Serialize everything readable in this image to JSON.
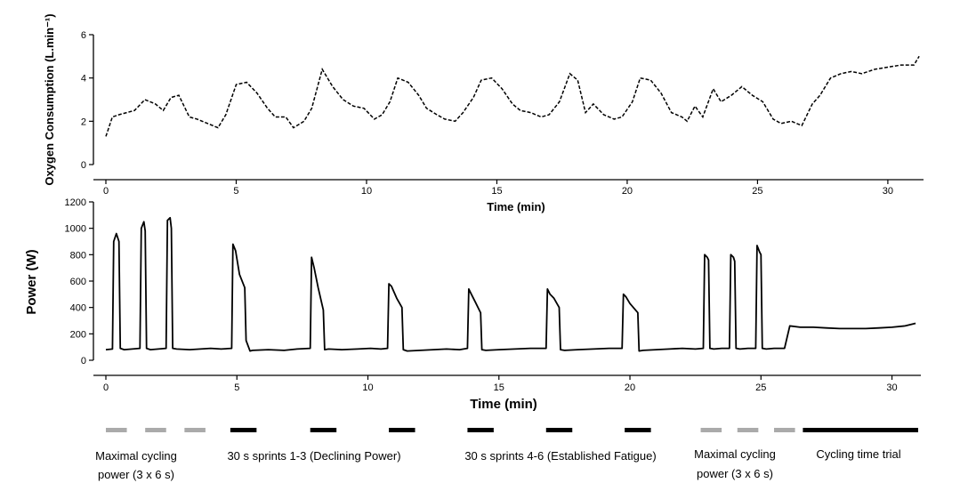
{
  "chart_data": [
    {
      "type": "line",
      "ylabel": "Oxygen Consumption (L.min⁻¹)",
      "xlabel": "Time (min)",
      "xlim": [
        0,
        31.3
      ],
      "ylim": [
        0,
        6
      ],
      "xticks": [
        0,
        5,
        10,
        15,
        20,
        25,
        30
      ],
      "yticks": [
        0,
        2,
        4,
        6
      ],
      "line_style": "dashed",
      "series": [
        {
          "x": [
            0.0,
            0.25,
            0.5,
            0.8,
            1.1,
            1.5,
            1.9,
            2.2,
            2.5,
            2.8,
            3.2,
            3.5,
            3.9,
            4.3,
            4.6,
            5.0,
            5.4,
            5.8,
            6.2,
            6.5,
            6.9,
            7.2,
            7.6,
            7.9,
            8.3,
            8.7,
            9.1,
            9.5,
            9.9,
            10.3,
            10.6,
            10.9,
            11.2,
            11.6,
            12.0,
            12.3,
            12.7,
            13.0,
            13.4,
            13.7,
            14.1,
            14.4,
            14.8,
            15.2,
            15.6,
            15.9,
            16.3,
            16.7,
            17.0,
            17.4,
            17.8,
            18.1,
            18.4,
            18.7,
            19.1,
            19.5,
            19.8,
            20.2,
            20.5,
            20.9,
            21.3,
            21.7,
            22.1,
            22.3,
            22.6,
            22.9,
            23.3,
            23.6,
            24.0,
            24.4,
            24.8,
            25.2,
            25.6,
            25.9,
            26.3,
            26.7,
            27.1,
            27.4,
            27.8,
            28.2,
            28.6,
            29.0,
            29.5,
            30.0,
            30.5,
            31.0,
            31.2
          ],
          "y": [
            1.3,
            2.2,
            2.3,
            2.4,
            2.5,
            3.0,
            2.8,
            2.5,
            3.1,
            3.2,
            2.2,
            2.1,
            1.9,
            1.7,
            2.3,
            3.7,
            3.8,
            3.3,
            2.6,
            2.2,
            2.2,
            1.7,
            2.0,
            2.6,
            4.4,
            3.6,
            3.0,
            2.7,
            2.6,
            2.1,
            2.3,
            2.9,
            4.0,
            3.8,
            3.2,
            2.6,
            2.3,
            2.1,
            2.0,
            2.4,
            3.1,
            3.9,
            4.0,
            3.5,
            2.8,
            2.5,
            2.4,
            2.2,
            2.3,
            2.9,
            4.2,
            3.9,
            2.4,
            2.8,
            2.3,
            2.1,
            2.2,
            2.9,
            4.0,
            3.9,
            3.3,
            2.4,
            2.2,
            2.0,
            2.7,
            2.2,
            3.5,
            2.9,
            3.2,
            3.6,
            3.2,
            2.9,
            2.1,
            1.9,
            2.0,
            1.8,
            2.8,
            3.2,
            4.0,
            4.2,
            4.3,
            4.2,
            4.4,
            4.5,
            4.6,
            4.6,
            5.0
          ]
        }
      ]
    },
    {
      "type": "line",
      "ylabel": "Power (W)",
      "xlabel": "Time (min)",
      "xlim": [
        0,
        31
      ],
      "ylim": [
        0,
        1200
      ],
      "xticks": [
        0,
        5,
        10,
        15,
        20,
        25,
        30
      ],
      "yticks": [
        0,
        200,
        400,
        600,
        800,
        1000,
        1200
      ],
      "series": [
        {
          "x": [
            0.0,
            0.25,
            0.3,
            0.4,
            0.5,
            0.55,
            0.7,
            1.0,
            1.3,
            1.35,
            1.45,
            1.5,
            1.55,
            1.7,
            2.0,
            2.3,
            2.35,
            2.45,
            2.5,
            2.55,
            2.7,
            3.2,
            3.6,
            4.0,
            4.4,
            4.8,
            4.85,
            4.95,
            5.1,
            5.3,
            5.35,
            5.5,
            5.6,
            6.2,
            6.8,
            7.3,
            7.8,
            7.85,
            7.95,
            8.1,
            8.3,
            8.35,
            8.5,
            9.0,
            9.6,
            10.1,
            10.5,
            10.75,
            10.8,
            10.9,
            11.1,
            11.3,
            11.35,
            11.5,
            12.0,
            12.5,
            13.0,
            13.5,
            13.8,
            13.85,
            13.95,
            14.1,
            14.3,
            14.35,
            14.5,
            15.0,
            15.6,
            16.2,
            16.8,
            16.85,
            16.95,
            17.1,
            17.3,
            17.35,
            17.5,
            18.0,
            18.6,
            19.2,
            19.7,
            19.75,
            19.85,
            20.0,
            20.3,
            20.35,
            20.5,
            21.0,
            21.5,
            22.0,
            22.5,
            22.8,
            22.85,
            22.95,
            23.0,
            23.05,
            23.2,
            23.5,
            23.8,
            23.85,
            23.95,
            24.0,
            24.05,
            24.2,
            24.5,
            24.8,
            24.85,
            24.95,
            25.0,
            25.05,
            25.2,
            25.5,
            25.9,
            26.1,
            26.5,
            27.0,
            27.5,
            28.0,
            28.5,
            29.0,
            29.5,
            30.0,
            30.5,
            30.9
          ],
          "y": [
            80,
            85,
            900,
            960,
            900,
            90,
            80,
            85,
            90,
            1000,
            1050,
            980,
            90,
            80,
            85,
            90,
            1060,
            1080,
            1000,
            90,
            85,
            80,
            85,
            90,
            85,
            90,
            880,
            830,
            650,
            550,
            150,
            70,
            75,
            80,
            75,
            85,
            90,
            780,
            700,
            550,
            380,
            80,
            85,
            80,
            85,
            90,
            85,
            90,
            580,
            560,
            470,
            400,
            80,
            70,
            75,
            80,
            85,
            80,
            90,
            540,
            500,
            440,
            360,
            80,
            75,
            80,
            85,
            90,
            90,
            540,
            500,
            470,
            400,
            80,
            75,
            80,
            85,
            90,
            90,
            500,
            480,
            430,
            360,
            70,
            75,
            80,
            85,
            90,
            85,
            90,
            800,
            780,
            760,
            90,
            85,
            90,
            90,
            800,
            780,
            750,
            90,
            85,
            90,
            90,
            870,
            820,
            800,
            90,
            85,
            90,
            90,
            260,
            250,
            250,
            245,
            240,
            240,
            240,
            245,
            250,
            260,
            280
          ]
        }
      ]
    }
  ],
  "phases": [
    {
      "label_lines": [
        "Maximal cycling",
        "power (3 x 6 s)"
      ],
      "color": "#aaaaaa",
      "bars": [
        [
          0,
          0.8
        ],
        [
          1.5,
          2.3
        ],
        [
          3.0,
          3.8
        ]
      ]
    },
    {
      "label_lines": [
        "30 s sprints 1-3 (Declining Power)"
      ],
      "color": "#000000",
      "bars": [
        [
          4.75,
          5.75
        ],
        [
          7.8,
          8.8
        ],
        [
          10.8,
          11.8
        ]
      ]
    },
    {
      "label_lines": [
        "30 s sprints 4-6 (Established Fatigue)"
      ],
      "color": "#000000",
      "bars": [
        [
          13.8,
          14.8
        ],
        [
          16.8,
          17.8
        ],
        [
          19.8,
          20.8
        ]
      ]
    },
    {
      "label_lines": [
        "Maximal cycling",
        "power (3 x 6 s)"
      ],
      "color": "#aaaaaa",
      "bars": [
        [
          22.7,
          23.5
        ],
        [
          24.1,
          24.9
        ],
        [
          25.5,
          26.3
        ]
      ]
    },
    {
      "label_lines": [
        "Cycling time trial"
      ],
      "color": "#000000",
      "bars": [
        [
          26.6,
          31.0
        ]
      ]
    }
  ]
}
